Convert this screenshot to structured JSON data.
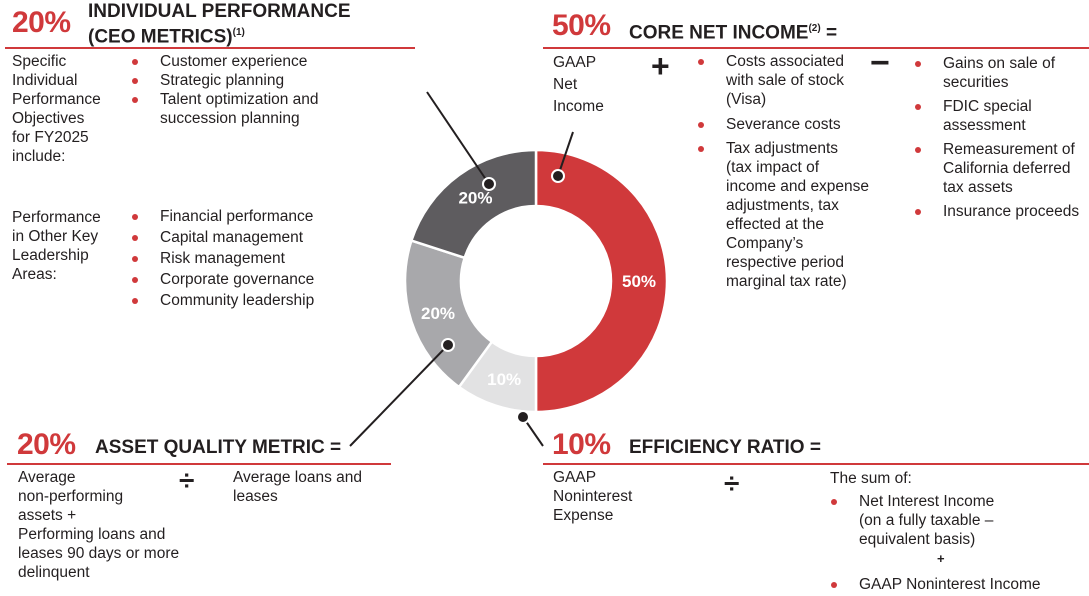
{
  "chart_data": {
    "type": "pie",
    "categories": [
      "Core Net Income",
      "Efficiency Ratio",
      "Asset Quality Metric",
      "Individual Performance"
    ],
    "values": [
      50,
      10,
      20,
      20
    ],
    "labels": [
      "50%",
      "10%",
      "20%",
      "20%"
    ],
    "colors": [
      "#d0393b",
      "#e2e2e3",
      "#a8a8ab",
      "#5e5c5f"
    ]
  },
  "individual": {
    "pct": "20%",
    "title_line1": "INDIVIDUAL PERFORMANCE",
    "title_line2": "(CEO METRICS)",
    "note": "(1)",
    "objectives_label": [
      "Specific",
      "Individual",
      "Performance",
      "Objectives",
      "for FY2025",
      "include:"
    ],
    "objectives": [
      "Customer experience",
      "Strategic planning",
      "Talent optimization and",
      "succession planning"
    ],
    "key_areas_label": [
      "Performance",
      "in Other Key",
      "Leadership",
      "Areas:"
    ],
    "key_areas": [
      "Financial performance",
      "Capital management",
      "Risk management",
      "Corporate governance",
      "Community leadership"
    ]
  },
  "core": {
    "pct": "50%",
    "title": "CORE NET INCOME",
    "note": "(2)",
    "eq": "=",
    "gaap": [
      "GAAP",
      "Net",
      "Income"
    ],
    "plus": "+",
    "minus": "−",
    "add_items": [
      [
        "Costs associated",
        "with sale of stock",
        "(Visa)"
      ],
      [
        "Severance costs"
      ],
      [
        "Tax adjustments",
        "(tax impact of",
        "income and expense",
        "adjustments, tax",
        "effected at the",
        "Company’s",
        "respective period",
        "marginal tax rate)"
      ]
    ],
    "sub_items": [
      [
        "Gains on sale of",
        "securities"
      ],
      [
        "FDIC special",
        "assessment"
      ],
      [
        "Remeasurement of",
        "California deferred",
        "tax assets"
      ],
      [
        "Insurance proceeds"
      ]
    ]
  },
  "asset": {
    "pct": "20%",
    "title": "ASSET QUALITY METRIC =",
    "numerator": [
      "Average",
      "non-performing",
      "assets +",
      "Performing loans and",
      "leases 90 days or more",
      "delinquent"
    ],
    "divide": "÷",
    "denominator": [
      "Average loans and",
      "leases"
    ]
  },
  "efficiency": {
    "pct": "10%",
    "title": "EFFICIENCY RATIO =",
    "numerator": [
      "GAAP",
      "Noninterest",
      "Expense"
    ],
    "divide": "÷",
    "sum_label": "The sum of:",
    "sum_item1": [
      "Net Interest Income",
      "(on a fully taxable –",
      "equivalent basis)"
    ],
    "plus": "+",
    "sum_item2": "GAAP Noninterest Income"
  }
}
